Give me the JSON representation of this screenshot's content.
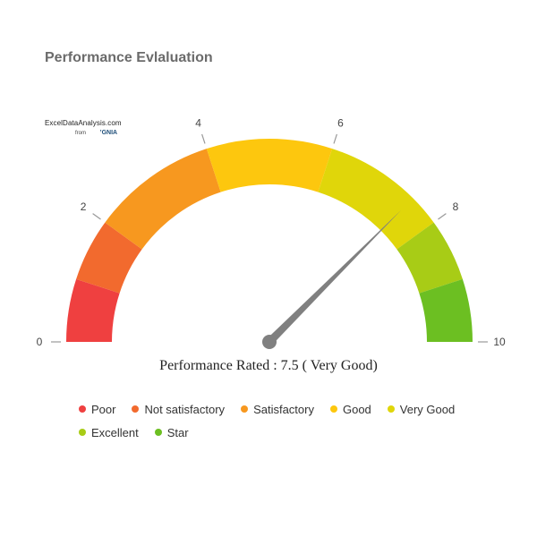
{
  "chart_data": {
    "type": "gauge",
    "title": "Performance Evlaluation",
    "min": 0,
    "max": 10,
    "value": 7.5,
    "caption": "Performance Rated : 7.5 ( Very Good)",
    "tick_labels": [
      "0",
      "2",
      "4",
      "6",
      "8",
      "10"
    ],
    "bands": [
      {
        "name": "Poor",
        "from": 0,
        "to": 1,
        "color": "#ef4040"
      },
      {
        "name": "Not satisfactory",
        "from": 1,
        "to": 2,
        "color": "#f26a2e"
      },
      {
        "name": "Satisfactory",
        "from": 2,
        "to": 4,
        "color": "#f7981f"
      },
      {
        "name": "Good",
        "from": 4,
        "to": 6,
        "color": "#fdc70e"
      },
      {
        "name": "Very Good",
        "from": 6,
        "to": 8,
        "color": "#e0d60a"
      },
      {
        "name": "Excellent",
        "from": 8,
        "to": 9,
        "color": "#a8cc16"
      },
      {
        "name": "Star",
        "from": 9,
        "to": 10,
        "color": "#6cbf22"
      }
    ],
    "needle_color": "#808080"
  },
  "logo": {
    "site": "ExcelDataAnalysis.com",
    "from": "from",
    "brand": "ʼGNIA"
  }
}
